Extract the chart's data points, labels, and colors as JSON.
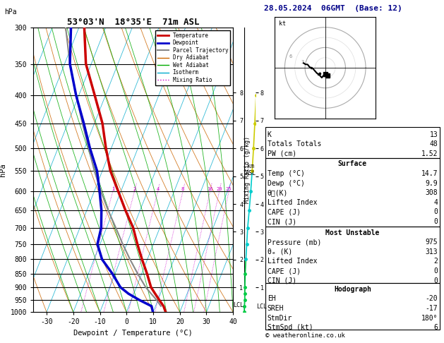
{
  "title_left": "53°03'N  18°35'E  71m ASL",
  "title_right": "28.05.2024  06GMT  (Base: 12)",
  "xlabel": "Dewpoint / Temperature (°C)",
  "bg_color": "#ffffff",
  "pressure_levels": [
    300,
    350,
    400,
    450,
    500,
    550,
    600,
    650,
    700,
    750,
    800,
    850,
    900,
    950,
    1000
  ],
  "temp_pressure": [
    1000,
    975,
    950,
    925,
    900,
    850,
    800,
    750,
    700,
    650,
    600,
    550,
    500,
    450,
    400,
    350,
    300
  ],
  "temp_T": [
    14.7,
    13.0,
    10.5,
    8.0,
    5.5,
    2.0,
    -2.0,
    -6.0,
    -10.0,
    -15.5,
    -21.0,
    -27.0,
    -32.0,
    -37.0,
    -44.0,
    -52.0,
    -58.0
  ],
  "temp_D": [
    9.9,
    8.5,
    3.0,
    -2.0,
    -6.0,
    -11.0,
    -17.0,
    -21.0,
    -22.0,
    -24.5,
    -28.0,
    -32.0,
    -38.0,
    -44.0,
    -51.0,
    -58.0,
    -63.0
  ],
  "parcel_pressure": [
    975,
    950,
    925,
    900,
    850,
    800,
    750,
    700,
    650,
    600,
    550,
    500,
    450,
    400,
    350,
    300
  ],
  "parcel_T": [
    12.0,
    9.5,
    6.5,
    3.5,
    -1.5,
    -6.5,
    -11.5,
    -16.5,
    -22.0,
    -27.5,
    -33.0,
    -38.5,
    -44.5,
    -51.0,
    -58.0,
    -65.0
  ],
  "temp_color": "#cc0000",
  "dewp_color": "#0000cc",
  "parcel_color": "#888888",
  "dry_adiabat_color": "#cc6600",
  "wet_adiabat_color": "#00aa00",
  "isotherm_color": "#00aacc",
  "mixing_ratio_color": "#cc00cc",
  "temp_lw": 2.5,
  "dewp_lw": 2.5,
  "parcel_lw": 1.5,
  "tmin": -35,
  "tmax": 40,
  "pmin": 300,
  "pmax": 1000,
  "skew_deg": 45,
  "mixing_ratio_values": [
    1,
    2,
    4,
    8,
    16,
    20,
    25
  ],
  "mixing_ratio_label_p": 600,
  "km_ticks": [
    1,
    2,
    3,
    4,
    5,
    6,
    7,
    8
  ],
  "lcl_pressure": 950,
  "wind_profile_p": [
    1000,
    975,
    950,
    925,
    900,
    850,
    800,
    750,
    700,
    650,
    600,
    550,
    500,
    450,
    400,
    350,
    300
  ],
  "wind_profile_spd": [
    3,
    4,
    5,
    4,
    3,
    3,
    4,
    5,
    6,
    8,
    10,
    12,
    14,
    16,
    18,
    20,
    22
  ],
  "wind_profile_dir": [
    180,
    185,
    190,
    195,
    200,
    210,
    220,
    230,
    240,
    250,
    260,
    265,
    270,
    275,
    275,
    280,
    285
  ],
  "hodo_u": [
    0,
    -0.9,
    -1.7,
    -2.6,
    -2.6,
    -2.6,
    -2.8,
    -3.2,
    -3.5,
    -4.0,
    -5.0,
    -6.0,
    -7.0,
    -7.8,
    -8.7,
    -9.8,
    -10.7
  ],
  "hodo_v": [
    -3,
    -3.9,
    -4.9,
    -3.9,
    -2.9,
    -2.6,
    -3.1,
    -3.2,
    -3.0,
    -2.8,
    -1.7,
    -0.5,
    0.0,
    0.4,
    1.6,
    1.7,
    2.3
  ],
  "idx_K": 13,
  "idx_TT": 48,
  "idx_PW": 1.52,
  "sfc_temp": 14.7,
  "sfc_dewp": 9.9,
  "sfc_thetae": 308,
  "sfc_li": 4,
  "sfc_cape": 0,
  "sfc_cin": 0,
  "mu_pres": 975,
  "mu_thetae": 313,
  "mu_li": 2,
  "mu_cape": 0,
  "mu_cin": 0,
  "hodo_eh": -20,
  "hodo_sreh": -17,
  "hodo_stmdir": "180°",
  "hodo_stmspd": 6
}
